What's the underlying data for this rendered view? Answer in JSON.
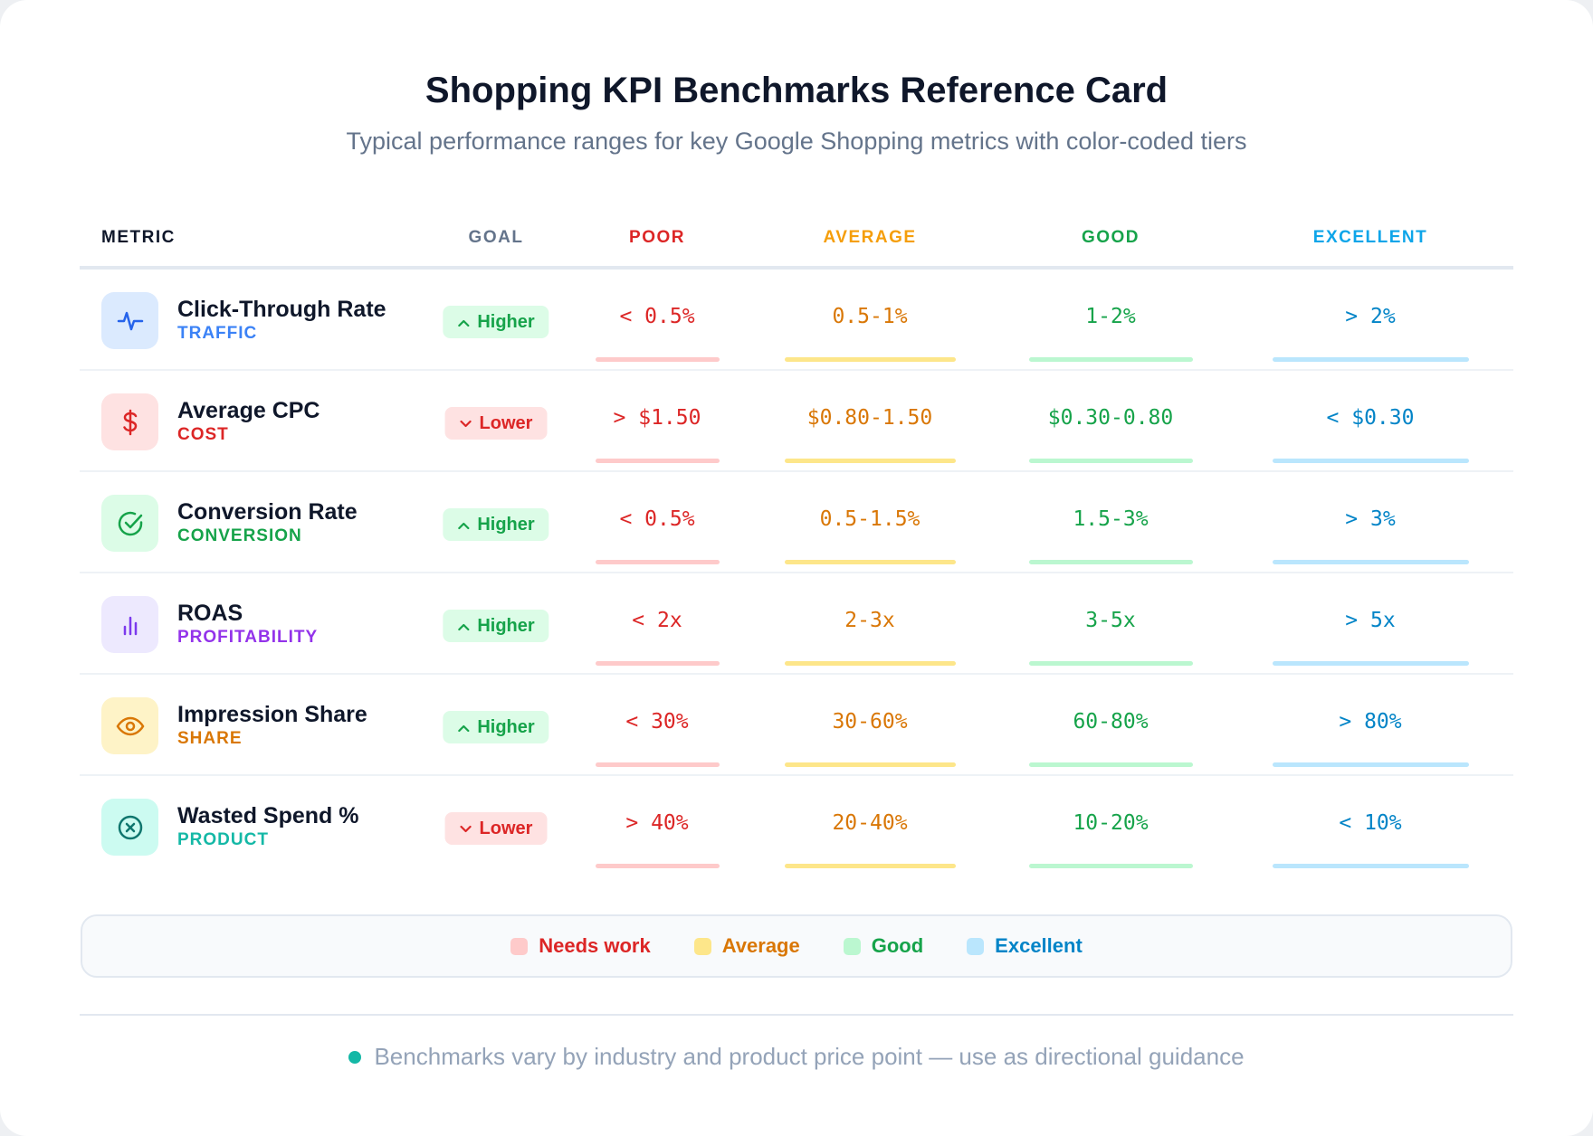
{
  "title": "Shopping KPI Benchmarks Reference Card",
  "subtitle": "Typical performance ranges for key Google Shopping metrics with color-coded tiers",
  "headers": {
    "metric": "METRIC",
    "goal": "GOAL",
    "poor": "POOR",
    "average": "AVERAGE",
    "good": "GOOD",
    "excellent": "EXCELLENT"
  },
  "colors": {
    "poor": "#dc2626",
    "average": "#d97706",
    "good": "#16a34a",
    "excellent": "#0284c7",
    "poor_bar": "#fecaca",
    "average_bar": "#fde68a",
    "good_bar": "#bbf7d0",
    "excellent_bar": "#bae6fd"
  },
  "rows": [
    {
      "name": "Click-Through Rate",
      "category": "TRAFFIC",
      "icon": "activity-icon",
      "goal": "Higher",
      "poor": "< 0.5%",
      "average": "0.5-1%",
      "good": "1-2%",
      "excellent": "> 2%"
    },
    {
      "name": "Average CPC",
      "category": "COST",
      "icon": "dollar-icon",
      "goal": "Lower",
      "poor": "> $1.50",
      "average": "$0.80-1.50",
      "good": "$0.30-0.80",
      "excellent": "< $0.30"
    },
    {
      "name": "Conversion Rate",
      "category": "CONVERSION",
      "icon": "check-circle-icon",
      "goal": "Higher",
      "poor": "< 0.5%",
      "average": "0.5-1.5%",
      "good": "1.5-3%",
      "excellent": "> 3%"
    },
    {
      "name": "ROAS",
      "category": "PROFITABILITY",
      "icon": "bar-chart-icon",
      "goal": "Higher",
      "poor": "< 2x",
      "average": "2-3x",
      "good": "3-5x",
      "excellent": "> 5x"
    },
    {
      "name": "Impression Share",
      "category": "SHARE",
      "icon": "eye-icon",
      "goal": "Higher",
      "poor": "< 30%",
      "average": "30-60%",
      "good": "60-80%",
      "excellent": "> 80%"
    },
    {
      "name": "Wasted Spend %",
      "category": "PRODUCT",
      "icon": "x-circle-icon",
      "goal": "Lower",
      "poor": "> 40%",
      "average": "20-40%",
      "good": "10-20%",
      "excellent": "< 10%"
    }
  ],
  "legend": [
    "Needs work",
    "Average",
    "Good",
    "Excellent"
  ],
  "footnote": "Benchmarks vary by industry and product price point — use as directional guidance"
}
